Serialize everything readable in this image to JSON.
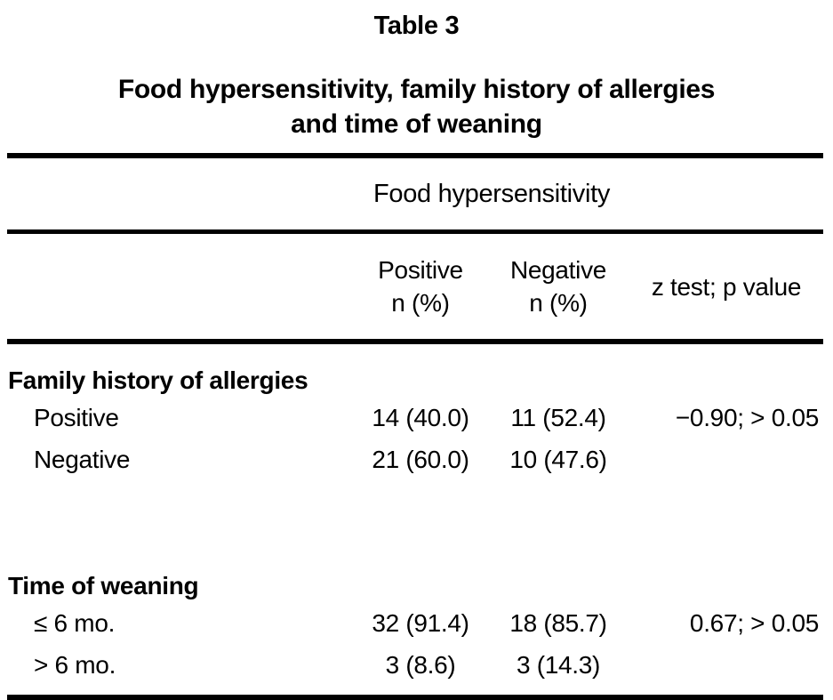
{
  "caption": "Table 3",
  "heading": {
    "line1": "Food hypersensitivity, family history of allergies",
    "line2": "and time of weaning"
  },
  "columns": {
    "group_header": "Food hypersensitivity",
    "positive": {
      "line1": "Positive",
      "line2": "n (%)"
    },
    "negative": {
      "line1": "Negative",
      "line2": "n (%)"
    },
    "ztest": "z test; p value"
  },
  "sections": [
    {
      "title": "Family history of allergies",
      "rows": [
        {
          "label": "Positive",
          "positive": "14 (40.0)",
          "negative": "11 (52.4)",
          "ztest": "−0.90; > 0.05"
        },
        {
          "label": "Negative",
          "positive": "21 (60.0)",
          "negative": "10 (47.6)",
          "ztest": ""
        }
      ]
    },
    {
      "title": "Time of weaning",
      "rows": [
        {
          "label": "≤ 6 mo.",
          "positive": "32 (91.4)",
          "negative": "18 (85.7)",
          "ztest": "0.67; > 0.05"
        },
        {
          "label": "> 6 mo.",
          "positive": "3 (8.6)",
          "negative": "3 (14.3)",
          "ztest": ""
        }
      ]
    }
  ],
  "colors": {
    "text": "#000000",
    "background": "#ffffff",
    "rule": "#000000"
  }
}
